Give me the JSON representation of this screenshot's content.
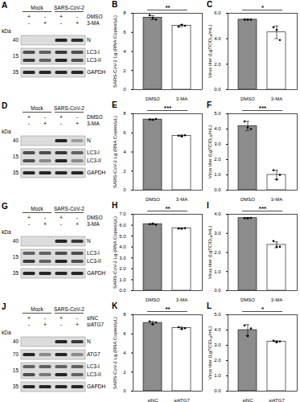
{
  "chart_data": [
    {
      "type": "bar",
      "panel": "B",
      "categories": [
        "DMSO",
        "3-MA"
      ],
      "values": [
        7.55,
        6.7
      ],
      "errors": [
        0.2,
        0.1
      ],
      "points": [
        [
          7.8,
          7.5,
          7.35
        ],
        [
          6.6,
          6.8,
          6.7
        ]
      ],
      "colors": [
        "#8c8c8c",
        "#ffffff"
      ],
      "ylabel": "SARS-CoV-2 Lg (RNA Copies/μL)",
      "ylim": [
        0,
        8
      ],
      "yticks": [
        0,
        2,
        4,
        6,
        8
      ],
      "significance": "**"
    },
    {
      "type": "bar",
      "panel": "C",
      "categories": [
        "DMSO",
        "3-MA"
      ],
      "values": [
        5.5,
        4.5
      ],
      "errors": [
        0.02,
        0.5
      ],
      "points": [
        [
          5.5,
          5.5,
          5.5
        ],
        [
          4.9,
          4.7,
          3.9
        ]
      ],
      "colors": [
        "#8c8c8c",
        "#ffffff"
      ],
      "ylabel": "Virus titer (LgTCID₅₀/mL)",
      "ylim": [
        0,
        6
      ],
      "yticks": [
        0,
        2,
        4,
        6
      ],
      "significance": "*"
    },
    {
      "type": "bar",
      "panel": "E",
      "categories": [
        "DMSO",
        "3-MA"
      ],
      "values": [
        7.4,
        5.7
      ],
      "errors": [
        0.03,
        0.08
      ],
      "points": [
        [
          7.4,
          7.37,
          7.45
        ],
        [
          5.7,
          5.62,
          5.75
        ]
      ],
      "colors": [
        "#8c8c8c",
        "#ffffff"
      ],
      "ylabel": "SARS-CoV-2 Lg (RNA Copies/μL)",
      "ylim": [
        0,
        8
      ],
      "yticks": [
        0,
        2,
        4,
        6,
        8
      ],
      "significance": "***"
    },
    {
      "type": "bar",
      "panel": "F",
      "categories": [
        "DMSO",
        "3-MA"
      ],
      "values": [
        4.2,
        1.0
      ],
      "errors": [
        0.3,
        0.3
      ],
      "points": [
        [
          4.5,
          4.1,
          4.0
        ],
        [
          1.3,
          0.7,
          1.0
        ]
      ],
      "colors": [
        "#8c8c8c",
        "#ffffff"
      ],
      "ylabel": "Virus titer (LgTCID₅₀/mL)",
      "ylim": [
        0,
        5
      ],
      "yticks": [
        0,
        1,
        2,
        3,
        4,
        5
      ],
      "significance": "***"
    },
    {
      "type": "bar",
      "panel": "H",
      "categories": [
        "DMSO",
        "3-MA"
      ],
      "values": [
        6.1,
        5.7
      ],
      "errors": [
        0.05,
        0.02
      ],
      "points": [
        [
          6.1,
          6.15,
          6.05
        ],
        [
          5.7,
          5.68,
          5.72
        ]
      ],
      "colors": [
        "#8c8c8c",
        "#ffffff"
      ],
      "ylabel": "SARS-CoV-2 Lg (RNA Copies/μL)",
      "ylim": [
        0,
        7
      ],
      "yticks": [
        0,
        1,
        2,
        3,
        4,
        5,
        6,
        7
      ],
      "significance": "**"
    },
    {
      "type": "bar",
      "panel": "I",
      "categories": [
        "DMSO",
        "3-MA"
      ],
      "values": [
        3.8,
        2.4
      ],
      "errors": [
        0.02,
        0.15
      ],
      "points": [
        [
          3.8,
          3.79,
          3.81
        ],
        [
          2.6,
          2.3,
          2.3
        ]
      ],
      "colors": [
        "#8c8c8c",
        "#ffffff"
      ],
      "ylabel": "Virus titer (LgTCID₅₀/mL)",
      "ylim": [
        0,
        4
      ],
      "yticks": [
        0,
        1,
        2,
        3,
        4
      ],
      "significance": "***"
    },
    {
      "type": "bar",
      "panel": "K",
      "categories": [
        "siNC",
        "siATG7"
      ],
      "values": [
        7.15,
        6.6
      ],
      "errors": [
        0.15,
        0.1
      ],
      "points": [
        [
          7.3,
          7.0,
          7.2
        ],
        [
          6.7,
          6.5,
          6.6
        ]
      ],
      "colors": [
        "#8c8c8c",
        "#ffffff"
      ],
      "ylabel": "SARS-CoV-2 Lg (RNA Copies/μL)",
      "ylim": [
        0,
        8
      ],
      "yticks": [
        0,
        2,
        4,
        6,
        8
      ],
      "significance": "**"
    },
    {
      "type": "bar",
      "panel": "L",
      "categories": [
        "siNC",
        "siATG7"
      ],
      "values": [
        4.0,
        3.25
      ],
      "errors": [
        0.35,
        0.05
      ],
      "points": [
        [
          4.3,
          3.6,
          4.1
        ],
        [
          3.3,
          3.2,
          3.25
        ]
      ],
      "colors": [
        "#8c8c8c",
        "#ffffff"
      ],
      "ylabel": "Virus titer (LgTCID₅₀/mL)",
      "ylim": [
        0,
        5
      ],
      "yticks": [
        0,
        1,
        2,
        3,
        4,
        5
      ],
      "significance": "*"
    }
  ],
  "blots": [
    {
      "panel": "A",
      "groups": [
        {
          "label": "Mock",
          "lanes": 2
        },
        {
          "label": "SARS-CoV-2",
          "lanes": 2
        }
      ],
      "treatments": [
        {
          "label": "DMSO",
          "signs": [
            "+",
            "-",
            "+",
            "-"
          ]
        },
        {
          "label": "3-MA",
          "signs": [
            "-",
            "+",
            "-",
            "+"
          ]
        }
      ],
      "kda_label": "kDa",
      "membranes": [
        {
          "marker": 40,
          "bands": [
            {
              "label": "N",
              "intensity": [
                0,
                0,
                0.9,
                0.85
              ]
            }
          ]
        },
        {
          "marker": 15,
          "bands": [
            {
              "label": "LC3-I",
              "intensity": [
                0.7,
                0.6,
                0.8,
                0.7
              ]
            },
            {
              "label": "LC3-II",
              "intensity": [
                0.8,
                0.6,
                0.9,
                0.7
              ]
            }
          ]
        },
        {
          "marker": 35,
          "bands": [
            {
              "label": "GAPDH",
              "intensity": [
                0.9,
                0.9,
                0.9,
                0.9
              ]
            }
          ]
        }
      ]
    },
    {
      "panel": "D",
      "groups": [
        {
          "label": "Mock",
          "lanes": 2
        },
        {
          "label": "SARS-CoV-2",
          "lanes": 2
        }
      ],
      "treatments": [
        {
          "label": "DMSO",
          "signs": [
            "+",
            "-",
            "+",
            "-"
          ]
        },
        {
          "label": "3-MA",
          "signs": [
            "-",
            "+",
            "-",
            "+"
          ]
        }
      ],
      "kda_label": "kDa",
      "membranes": [
        {
          "marker": 40,
          "bands": [
            {
              "label": "N",
              "intensity": [
                0,
                0,
                0.9,
                0.3
              ]
            }
          ]
        },
        {
          "marker": 15,
          "bands": [
            {
              "label": "LC3-I",
              "intensity": [
                0.7,
                0.7,
                0.8,
                0.6
              ]
            },
            {
              "label": "LC3-II",
              "intensity": [
                0.7,
                0.4,
                0.9,
                0.4
              ]
            }
          ]
        },
        {
          "marker": 35,
          "bands": [
            {
              "label": "GAPDH",
              "intensity": [
                0.9,
                0.9,
                0.9,
                0.9
              ]
            }
          ]
        }
      ]
    },
    {
      "panel": "G",
      "groups": [
        {
          "label": "Mock",
          "lanes": 2
        },
        {
          "label": "SARS-CoV-2",
          "lanes": 2
        }
      ],
      "treatments": [
        {
          "label": "DMSO",
          "signs": [
            "+",
            "-",
            "+",
            "-"
          ]
        },
        {
          "label": "3-MA",
          "signs": [
            "-",
            "+",
            "-",
            "+"
          ]
        }
      ],
      "kda_label": "kDa",
      "membranes": [
        {
          "marker": 40,
          "bands": [
            {
              "label": "N",
              "intensity": [
                0,
                0,
                0.9,
                0.8
              ]
            }
          ]
        },
        {
          "marker": 15,
          "bands": [
            {
              "label": "LC3-I",
              "intensity": [
                0.6,
                0.6,
                0.7,
                0.7
              ]
            },
            {
              "label": "LC3-II",
              "intensity": [
                0.8,
                0.6,
                0.9,
                0.7
              ]
            }
          ]
        },
        {
          "marker": 35,
          "bands": [
            {
              "label": "GAPDH",
              "intensity": [
                0.9,
                0.9,
                0.9,
                0.9
              ]
            }
          ]
        }
      ]
    },
    {
      "panel": "J",
      "groups": [
        {
          "label": "Mock",
          "lanes": 2
        },
        {
          "label": "SARS-CoV-2",
          "lanes": 2
        }
      ],
      "treatments": [
        {
          "label": "siNC",
          "signs": [
            "+",
            "-",
            "+",
            "-"
          ]
        },
        {
          "label": "siATG7",
          "signs": [
            "-",
            "+",
            "-",
            "+"
          ]
        }
      ],
      "kda_label": "kDa",
      "membranes": [
        {
          "marker": 40,
          "bands": [
            {
              "label": "N",
              "intensity": [
                0,
                0,
                0.9,
                0.8
              ]
            }
          ]
        },
        {
          "marker": 70,
          "bands": [
            {
              "label": "ATG7",
              "intensity": [
                0.9,
                0.4,
                0.9,
                0.4
              ]
            }
          ]
        },
        {
          "marker": 15,
          "bands": [
            {
              "label": "LC3-I",
              "intensity": [
                0.6,
                0.6,
                0.6,
                0.6
              ]
            },
            {
              "label": "LC3-II",
              "intensity": [
                0.7,
                0.5,
                0.9,
                0.6
              ]
            }
          ]
        },
        {
          "marker": 35,
          "bands": [
            {
              "label": "GAPDH",
              "intensity": [
                0.9,
                0.9,
                0.9,
                0.9
              ]
            }
          ]
        }
      ]
    }
  ]
}
